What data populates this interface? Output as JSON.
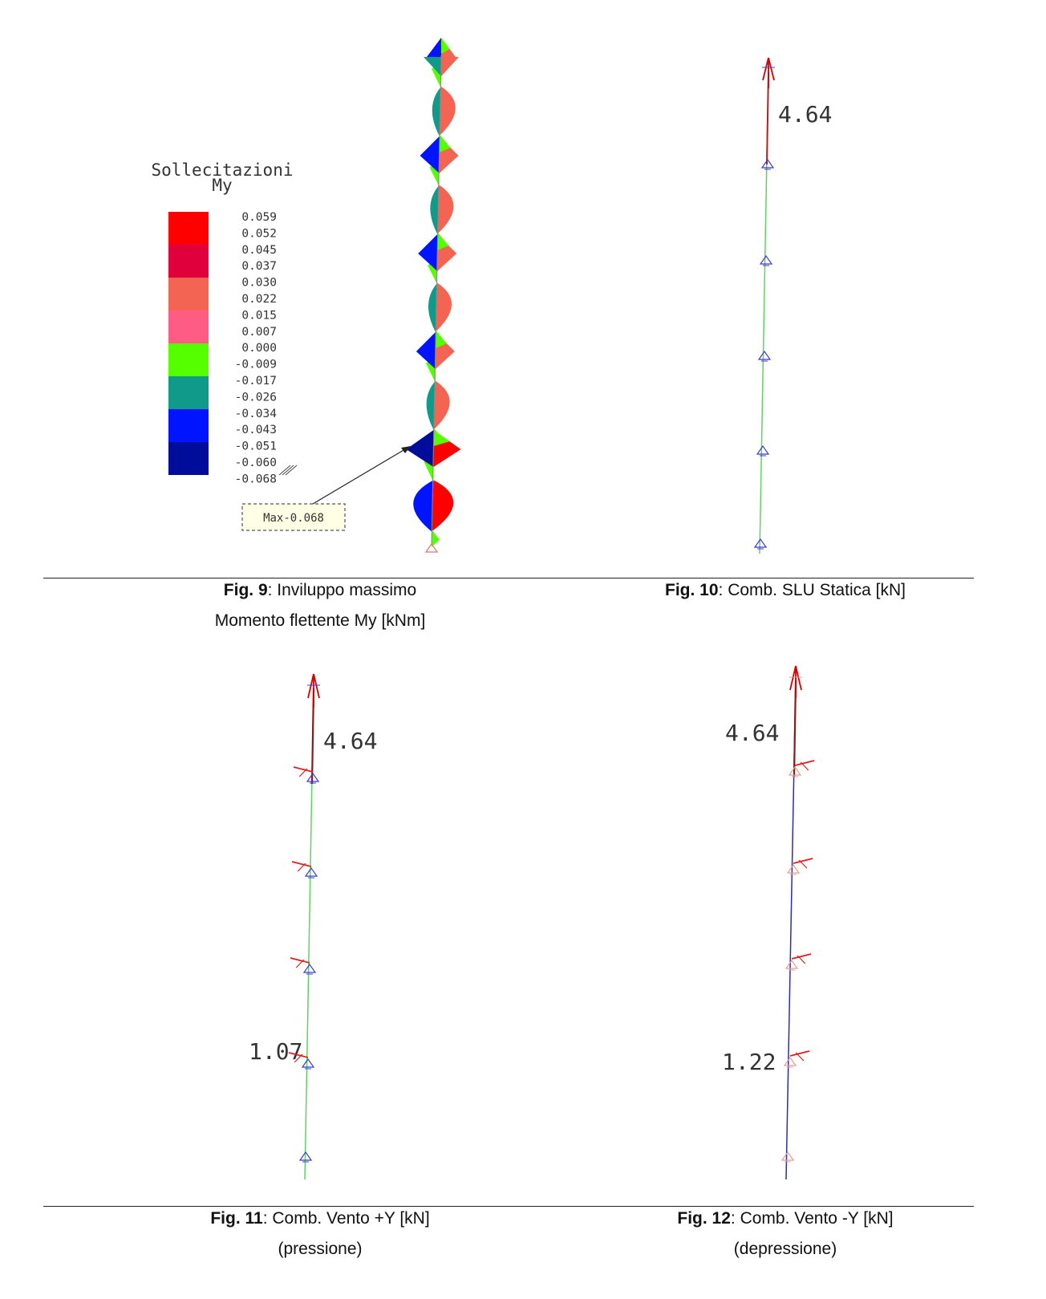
{
  "colors": {
    "red": "#ff0000",
    "crimson": "#e0003c",
    "salmon": "#f36552",
    "pink": "#ff5c84",
    "green": "#55ff00",
    "teal": "#0f9a8a",
    "blue": "#0014ff",
    "navy": "#000c9a",
    "member_green": "#5fd35f",
    "member_blue": "#2d2dae",
    "load_red": "#e21b1b"
  },
  "fig9": {
    "legend_title": "Sollecitazioni",
    "legend_subtitle": "My",
    "legend_values": [
      "0.059",
      "0.052",
      "0.045",
      "0.037",
      "0.030",
      "0.022",
      "0.015",
      "0.007",
      "0.000",
      "-0.009",
      "-0.017",
      "-0.026",
      "-0.034",
      "-0.043",
      "-0.051",
      "-0.060",
      "-0.068"
    ],
    "max_label": "Max-0.068",
    "caption_fig": "Fig. 9",
    "caption_text": ": Inviluppo massimo",
    "caption_line2": "Momento flettente My [kNm]"
  },
  "fig10": {
    "value_top": "4.64",
    "caption_fig": "Fig. 10",
    "caption_text": ": Comb. SLU Statica [kN]"
  },
  "fig11": {
    "value_top": "4.64",
    "value_bottom": "1.07",
    "caption_fig": "Fig. 11",
    "caption_text": ": Comb. Vento +Y [kN]",
    "caption_line2": "(pressione)"
  },
  "fig12": {
    "value_top": "4.64",
    "value_bottom": "1.22",
    "caption_fig": "Fig. 12",
    "caption_text": ": Comb. Vento -Y [kN]",
    "caption_line2": "(depressione)"
  }
}
